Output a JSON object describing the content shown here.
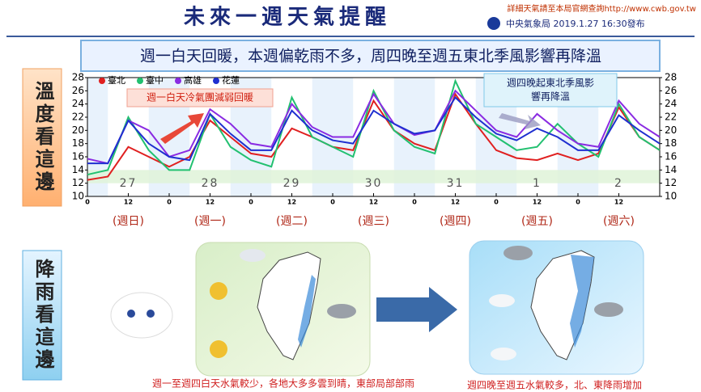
{
  "header": {
    "title": "未來一週天氣提醒",
    "source": "詳細天氣請至本局官網查詢http://www.cwb.gov.tw",
    "issuer": "中央氣象局 2019.1.27  16:30發布"
  },
  "banner": "週一白天回暖，本週偏乾雨不多，周四晚至週五東北季風影響再降溫",
  "section_labels": {
    "temperature": "溫度看這邊",
    "rain": "降雨看這邊"
  },
  "captions": [
    "週一至週四白天水氣較少，各地大多多雲到晴，東部局部部雨",
    "週四晚至週五水氣較多，北、東降雨增加"
  ],
  "chart_data": {
    "type": "line",
    "x": [
      0,
      6,
      12,
      18,
      24,
      30,
      36,
      42,
      48,
      54,
      60,
      66,
      72,
      78,
      84,
      90,
      96,
      102,
      108,
      114,
      120,
      126,
      132,
      138,
      144,
      150,
      156,
      162,
      168
    ],
    "series": [
      {
        "name": "臺北",
        "color": "#e02020",
        "values": [
          12.5,
          13,
          17.5,
          16,
          14.5,
          16,
          21.5,
          19,
          16.5,
          16,
          20.3,
          19,
          17.5,
          17,
          24.5,
          20,
          18,
          17,
          25.5,
          21,
          17,
          15.8,
          15.5,
          16.5,
          15.5,
          16.5,
          23.5,
          19,
          17
        ]
      },
      {
        "name": "臺中",
        "color": "#22c070",
        "values": [
          13.3,
          14,
          22,
          17,
          14,
          14,
          22.5,
          17.5,
          15.5,
          14.5,
          25,
          19,
          17.5,
          16,
          26,
          20,
          17.5,
          16.5,
          27.5,
          21,
          19,
          17,
          17.5,
          21,
          18,
          16,
          24,
          19,
          17
        ]
      },
      {
        "name": "高雄",
        "color": "#8a2be2",
        "values": [
          15.7,
          15,
          21.5,
          20,
          16,
          17,
          23.2,
          21,
          18,
          17.5,
          24,
          20.5,
          19,
          19,
          25.5,
          21,
          19.3,
          20,
          26,
          23,
          20,
          19,
          22.5,
          20,
          18,
          17.5,
          24.5,
          21,
          19
        ]
      },
      {
        "name": "花蓮",
        "color": "#1f2fd0",
        "values": [
          15,
          15,
          21.5,
          18,
          16,
          15.5,
          22.5,
          19.5,
          17,
          17,
          23,
          20,
          18.5,
          18,
          23,
          21,
          19.5,
          20,
          25,
          22,
          19.5,
          18.5,
          20.3,
          19,
          17,
          17,
          22.3,
          20,
          18
        ]
      }
    ],
    "xlim": [
      0,
      168
    ],
    "xticks": [
      0,
      12,
      {
        "value": 24,
        "label": "0"
      },
      {
        "value": 36,
        "label": "12"
      },
      {
        "value": 48,
        "label": "0"
      },
      {
        "value": 60,
        "label": "12"
      },
      {
        "value": 72,
        "label": "0"
      },
      {
        "value": 84,
        "label": "12"
      },
      {
        "value": 96,
        "label": "0"
      },
      {
        "value": 108,
        "label": "12"
      },
      {
        "value": 120,
        "label": "0"
      },
      {
        "value": 132,
        "label": "12"
      },
      {
        "value": 144,
        "label": "0"
      },
      {
        "value": 156,
        "label": "12"
      }
    ],
    "ylim": [
      10,
      28
    ],
    "yticks": [
      10,
      12,
      14,
      16,
      18,
      20,
      22,
      24,
      26,
      28
    ],
    "y2lim": [
      10,
      28
    ],
    "y2ticks": [
      10,
      12,
      14,
      16,
      18,
      20,
      22,
      24,
      26,
      28
    ],
    "day_labels": [
      "27",
      "28",
      "29",
      "30",
      "31",
      "1",
      "2"
    ],
    "weekday_labels": [
      "(週日)",
      "(週一)",
      "(週二)",
      "(週三)",
      "(週四)",
      "(週五)",
      "(週六)"
    ],
    "annotations": [
      {
        "text": "週一白天冷氣團減弱回暖"
      },
      {
        "lines": [
          "週四晚起東北季風影",
          "響再降溫"
        ]
      }
    ],
    "legend": "top-left"
  }
}
